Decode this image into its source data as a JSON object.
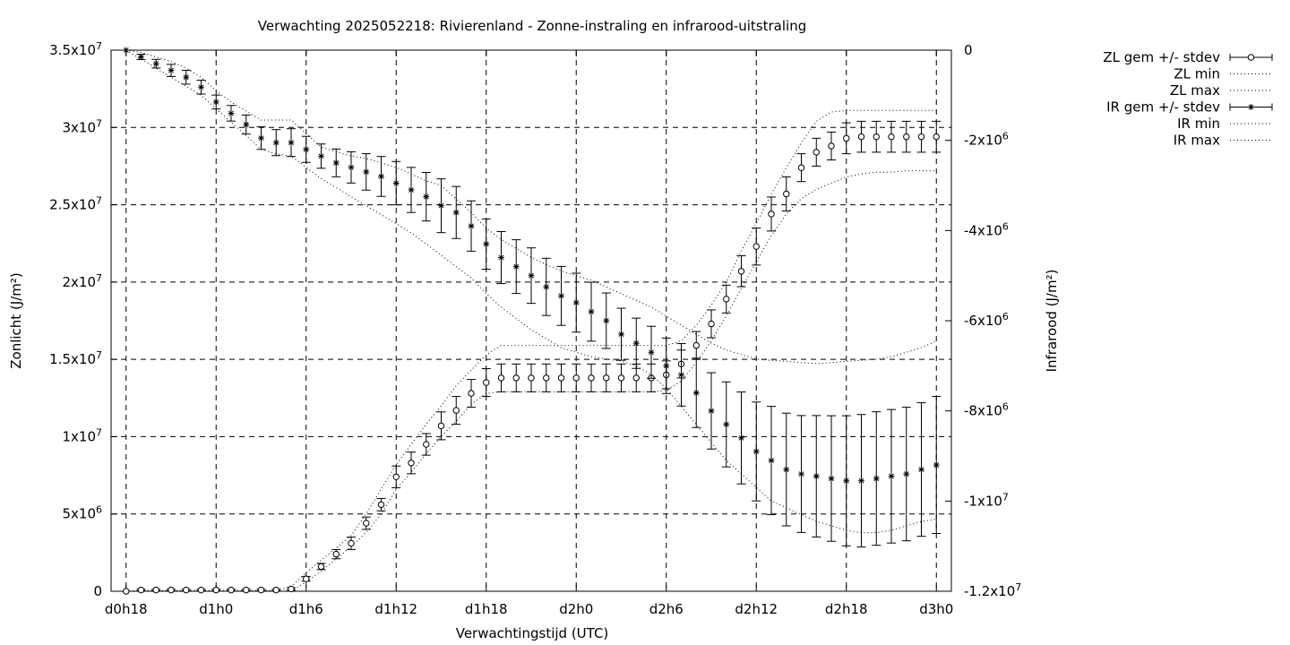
{
  "chart_data": {
    "type": "line",
    "title": "Verwachting 2025052218: Rivierenland - Zonne-instraling en infrarood-uitstraling",
    "xlabel": "Verwachtingstijd (UTC)",
    "ylabel": "Zonlicht (J/m²)",
    "y2label": "Infrarood (J/m²)",
    "x_unit": "hours after d0h18",
    "xlim": [
      -1,
      55
    ],
    "ylim": [
      0,
      35000000
    ],
    "y2lim": [
      -12000000,
      0
    ],
    "grid": true,
    "legend_position": "outside-right",
    "x_ticks": [
      {
        "value": 0,
        "label": "d0h18"
      },
      {
        "value": 6,
        "label": "d1h0"
      },
      {
        "value": 12,
        "label": "d1h6"
      },
      {
        "value": 18,
        "label": "d1h12"
      },
      {
        "value": 24,
        "label": "d1h18"
      },
      {
        "value": 30,
        "label": "d2h0"
      },
      {
        "value": 36,
        "label": "d2h6"
      },
      {
        "value": 42,
        "label": "d2h12"
      },
      {
        "value": 48,
        "label": "d2h18"
      },
      {
        "value": 54,
        "label": "d3h0"
      }
    ],
    "y_ticks": [
      {
        "value": 0,
        "label": "0"
      },
      {
        "value": 5000000,
        "label": "5x10",
        "exp": "6"
      },
      {
        "value": 10000000,
        "label": "1x10",
        "exp": "7"
      },
      {
        "value": 15000000,
        "label": "1.5x10",
        "exp": "7"
      },
      {
        "value": 20000000,
        "label": "2x10",
        "exp": "7"
      },
      {
        "value": 25000000,
        "label": "2.5x10",
        "exp": "7"
      },
      {
        "value": 30000000,
        "label": "3x10",
        "exp": "7"
      },
      {
        "value": 35000000,
        "label": "3.5x10",
        "exp": "7"
      }
    ],
    "y2_ticks": [
      {
        "value": 0,
        "label": "0"
      },
      {
        "value": -2000000,
        "label": "-2x10",
        "exp": "6"
      },
      {
        "value": -4000000,
        "label": "-4x10",
        "exp": "6"
      },
      {
        "value": -6000000,
        "label": "-6x10",
        "exp": "6"
      },
      {
        "value": -8000000,
        "label": "-8x10",
        "exp": "6"
      },
      {
        "value": -10000000,
        "label": "-1x10",
        "exp": "7"
      },
      {
        "value": -12000000,
        "label": "-1.2x10",
        "exp": "7"
      }
    ],
    "x": [
      0,
      1,
      2,
      3,
      4,
      5,
      6,
      7,
      8,
      9,
      10,
      11,
      12,
      13,
      14,
      15,
      16,
      17,
      18,
      19,
      20,
      21,
      22,
      23,
      24,
      25,
      26,
      27,
      28,
      29,
      30,
      31,
      32,
      33,
      34,
      35,
      36,
      37,
      38,
      39,
      40,
      41,
      42,
      43,
      44,
      45,
      46,
      47,
      48,
      49,
      50,
      51,
      52,
      53,
      54
    ],
    "series": [
      {
        "name": "ZL gem +/- stdev",
        "axis": "y1",
        "marker": "open-circle",
        "values": [
          0,
          80000,
          80000,
          80000,
          80000,
          80000,
          80000,
          80000,
          80000,
          80000,
          80000,
          150000,
          800000,
          1600000,
          2400000,
          3100000,
          4400000,
          5600000,
          7400000,
          8300000,
          9500000,
          10700000,
          11700000,
          12800000,
          13500000,
          13800000,
          13800000,
          13800000,
          13800000,
          13800000,
          13800000,
          13800000,
          13800000,
          13800000,
          13800000,
          13800000,
          14000000,
          14700000,
          15900000,
          17300000,
          18900000,
          20700000,
          22300000,
          24400000,
          25700000,
          27400000,
          28400000,
          28800000,
          29300000,
          29400000,
          29400000,
          29400000,
          29400000,
          29400000,
          29400000
        ],
        "stdev": [
          0,
          50000,
          50000,
          50000,
          50000,
          50000,
          50000,
          50000,
          50000,
          50000,
          50000,
          80000,
          150000,
          200000,
          300000,
          400000,
          400000,
          400000,
          700000,
          700000,
          700000,
          900000,
          900000,
          900000,
          900000,
          900000,
          900000,
          900000,
          900000,
          900000,
          900000,
          900000,
          900000,
          900000,
          900000,
          900000,
          900000,
          900000,
          900000,
          900000,
          900000,
          1000000,
          1200000,
          1100000,
          1100000,
          900000,
          900000,
          900000,
          1000000,
          1000000,
          1000000,
          1000000,
          1000000,
          1000000,
          1000000
        ]
      },
      {
        "name": "ZL min",
        "axis": "y1",
        "style": "dotted",
        "values": [
          0,
          0,
          0,
          0,
          0,
          0,
          0,
          0,
          0,
          0,
          0,
          0,
          600000,
          1300000,
          2100000,
          2900000,
          3800000,
          5000000,
          6600000,
          7700000,
          8900000,
          10000000,
          11000000,
          12100000,
          12800000,
          12900000,
          12900000,
          12900000,
          12900000,
          12900000,
          12900000,
          12900000,
          12900000,
          12900000,
          12900000,
          12900000,
          13000000,
          13600000,
          14800000,
          16200000,
          17800000,
          19600000,
          21300000,
          23000000,
          24400000,
          25400000,
          26000000,
          26400000,
          26800000,
          27000000,
          27100000,
          27100000,
          27200000,
          27200000,
          27200000
        ]
      },
      {
        "name": "ZL max",
        "axis": "y1",
        "style": "dotted",
        "values": [
          0,
          50000,
          50000,
          50000,
          50000,
          50000,
          50000,
          50000,
          50000,
          50000,
          50000,
          300000,
          1200000,
          2000000,
          2800000,
          3600000,
          5000000,
          6600000,
          8200000,
          9500000,
          10800000,
          12000000,
          13300000,
          14300000,
          15300000,
          15900000,
          15900000,
          15900000,
          15900000,
          15900000,
          15900000,
          15900000,
          15900000,
          15900000,
          15900000,
          15900000,
          15900000,
          16200000,
          17200000,
          18500000,
          20000000,
          22000000,
          23800000,
          25700000,
          27400000,
          29000000,
          30400000,
          31000000,
          31100000,
          31100000,
          31100000,
          31100000,
          31100000,
          31100000,
          31100000
        ]
      },
      {
        "name": "IR gem +/- stdev",
        "axis": "y2",
        "marker": "star",
        "values": [
          0,
          -150000,
          -300000,
          -450000,
          -600000,
          -820000,
          -1150000,
          -1400000,
          -1650000,
          -1950000,
          -2050000,
          -2050000,
          -2200000,
          -2350000,
          -2500000,
          -2600000,
          -2700000,
          -2800000,
          -2950000,
          -3100000,
          -3250000,
          -3450000,
          -3600000,
          -3900000,
          -4300000,
          -4600000,
          -4800000,
          -5000000,
          -5250000,
          -5450000,
          -5600000,
          -5800000,
          -6000000,
          -6300000,
          -6500000,
          -6700000,
          -7000000,
          -7200000,
          -7600000,
          -8000000,
          -8300000,
          -8600000,
          -8900000,
          -9100000,
          -9300000,
          -9400000,
          -9450000,
          -9500000,
          -9550000,
          -9550000,
          -9500000,
          -9450000,
          -9400000,
          -9300000,
          -9200000
        ]
      },
      {
        "name": "IR min",
        "axis": "y2",
        "style": "dotted",
        "values": [
          0,
          -200000,
          -400000,
          -600000,
          -800000,
          -1000000,
          -1300000,
          -1600000,
          -1900000,
          -2200000,
          -2300000,
          -2350000,
          -2600000,
          -2850000,
          -3050000,
          -3250000,
          -3450000,
          -3650000,
          -3850000,
          -4050000,
          -4300000,
          -4550000,
          -4800000,
          -5050000,
          -5400000,
          -5700000,
          -5950000,
          -6200000,
          -6400000,
          -6600000,
          -6700000,
          -6800000,
          -6850000,
          -6900000,
          -7000000,
          -7200000,
          -7500000,
          -7900000,
          -8300000,
          -8700000,
          -9100000,
          -9400000,
          -9700000,
          -10000000,
          -10150000,
          -10300000,
          -10450000,
          -10550000,
          -10650000,
          -10700000,
          -10700000,
          -10650000,
          -10550000,
          -10450000,
          -10400000
        ]
      },
      {
        "name": "IR max",
        "axis": "y2",
        "style": "dotted",
        "values": [
          0,
          -50000,
          -150000,
          -250000,
          -400000,
          -600000,
          -900000,
          -1150000,
          -1350000,
          -1550000,
          -1550000,
          -1550000,
          -1850000,
          -2150000,
          -2250000,
          -2350000,
          -2400000,
          -2500000,
          -2600000,
          -2750000,
          -2900000,
          -3000000,
          -3300000,
          -3600000,
          -3950000,
          -4200000,
          -4400000,
          -4600000,
          -4750000,
          -4900000,
          -5000000,
          -5100000,
          -5250000,
          -5400000,
          -5550000,
          -5700000,
          -5900000,
          -6100000,
          -6300000,
          -6500000,
          -6650000,
          -6750000,
          -6850000,
          -6880000,
          -6900000,
          -6930000,
          -6950000,
          -6930000,
          -6900000,
          -6880000,
          -6850000,
          -6800000,
          -6700000,
          -6600000,
          -6450000
        ]
      }
    ]
  }
}
